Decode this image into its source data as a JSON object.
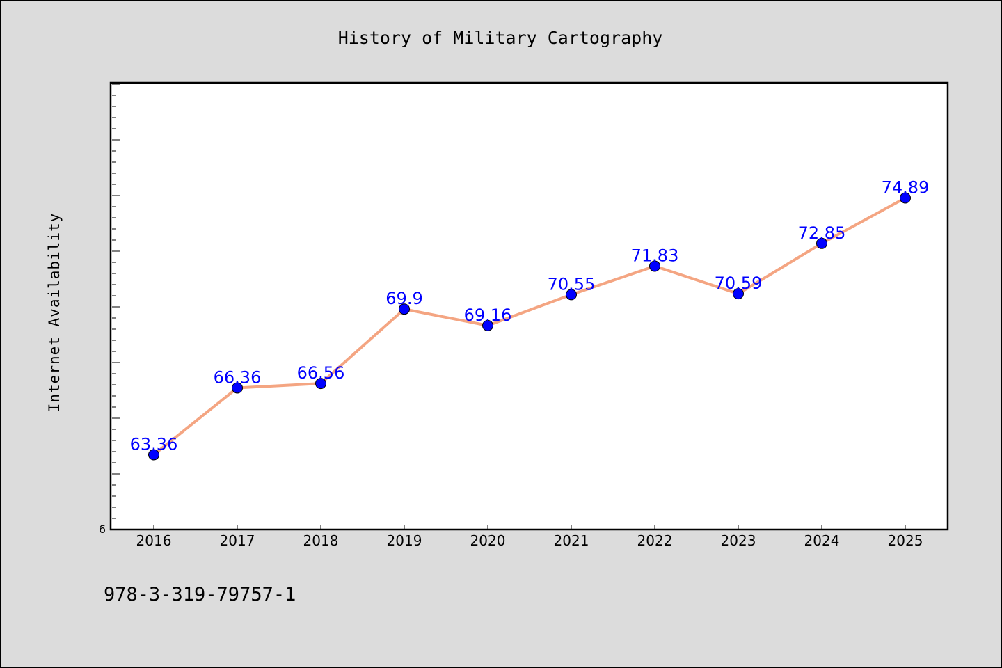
{
  "chart_data": {
    "type": "line",
    "title": "History of Military Cartography",
    "xlabel": "",
    "ylabel": "Internet Availability",
    "categories": [
      "2016",
      "2017",
      "2018",
      "2019",
      "2020",
      "2021",
      "2022",
      "2023",
      "2024",
      "2025"
    ],
    "series": [
      {
        "values": [
          63.36,
          66.36,
          66.56,
          69.9,
          69.16,
          70.55,
          71.83,
          70.59,
          72.85,
          74.89
        ]
      }
    ],
    "data_labels": [
      "63.36",
      "66.36",
      "66.56",
      "69.9",
      "69.16",
      "70.55",
      "71.83",
      "70.59",
      "72.85",
      "74.89"
    ],
    "y_tick_label": "6",
    "ylim": [
      60,
      80
    ],
    "grid": false,
    "legend": "none",
    "colors": {
      "line": "#f4a582",
      "marker": "#0000ff",
      "label": "#0000ff",
      "background": "#dcdcdc",
      "plot_background": "#ffffff"
    }
  },
  "footnote": "978-3-319-79757-1"
}
